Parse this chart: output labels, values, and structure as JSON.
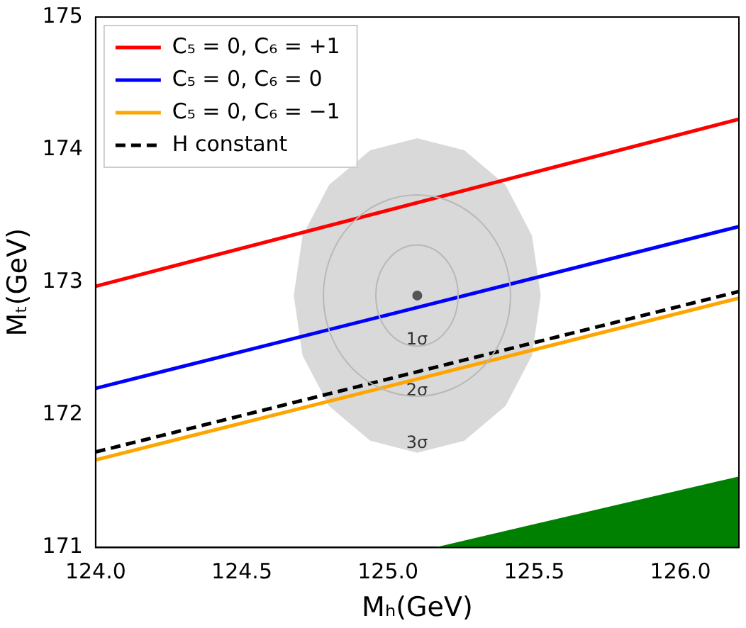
{
  "chart_data": {
    "type": "line",
    "xlabel": "Mₕ(GeV)",
    "ylabel": "Mₜ(GeV)",
    "xlim": [
      124,
      126.2
    ],
    "ylim": [
      171,
      175
    ],
    "xticks": [
      {
        "value": 124,
        "label": "124.0"
      },
      {
        "value": 124.5,
        "label": "124.5"
      },
      {
        "value": 125,
        "label": "125.0"
      },
      {
        "value": 125.5,
        "label": "125.5"
      },
      {
        "value": 126,
        "label": "126.0"
      }
    ],
    "yticks": [
      171,
      172,
      173,
      174,
      175
    ],
    "grid": false,
    "legend": "top left",
    "series": [
      {
        "type": "area",
        "color": "#d9d9d9",
        "x": [
          125.52,
          125.49,
          125.4,
          125.26,
          125.1,
          124.94,
          124.8,
          124.71,
          124.68,
          124.71,
          124.8,
          124.94,
          125.1,
          125.26,
          125.4,
          125.49,
          125.52
        ],
        "values": [
          172.9,
          173.35,
          173.73,
          173.99,
          174.08,
          173.99,
          173.73,
          173.35,
          172.9,
          172.45,
          172.07,
          171.81,
          171.72,
          171.81,
          172.07,
          172.45,
          172.9
        ]
      },
      {
        "type": "scatter",
        "color": "#555555",
        "marker": "circle",
        "x": [
          125.1
        ],
        "values": [
          172.9
        ]
      },
      {
        "type": "area",
        "color": "#008000",
        "x": [
          125.17,
          126.2,
          126.2,
          125.17
        ],
        "values": [
          171,
          171.53,
          171,
          171
        ]
      },
      {
        "type": "line",
        "name": "C₅ = 0, C₆ = +1",
        "color": "#ff0000",
        "x": [
          124,
          126.2
        ],
        "values": [
          172.97,
          174.23
        ]
      },
      {
        "type": "line",
        "name": "C₅ = 0, C₆ = 0",
        "color": "#0000ff",
        "x": [
          124,
          126.2
        ],
        "values": [
          172.2,
          173.42
        ]
      },
      {
        "type": "line",
        "name": "C₅ = 0, C₆ = −1",
        "color": "#ffa500",
        "x": [
          124,
          126.2
        ],
        "values": [
          171.66,
          172.88
        ]
      },
      {
        "type": "line",
        "name": "H constant",
        "color": "#000000",
        "line_style": "dashed",
        "x": [
          124,
          126.2
        ],
        "values": [
          171.72,
          172.93
        ]
      }
    ],
    "annotations": [
      "1σ",
      "2σ",
      "3σ"
    ]
  }
}
